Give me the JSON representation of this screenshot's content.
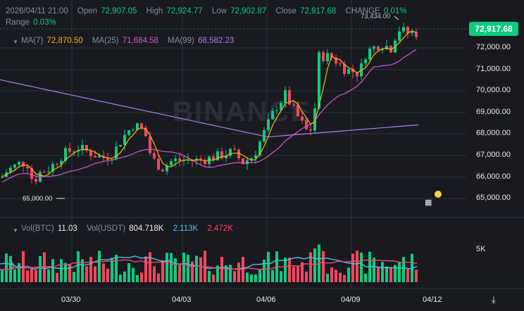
{
  "header": {
    "datetime": "2026/04/11 21:00",
    "open_label": "Open",
    "open": "72,907.05",
    "high_label": "High",
    "high": "72,924.77",
    "low_label": "Low",
    "low": "72,902.87",
    "close_label": "Close",
    "close": "72,917.68",
    "change_label": "CHANGE",
    "change": "0.01%",
    "range_label": "Range",
    "range": "0.03%"
  },
  "ma": {
    "ma7_label": "MA(7)",
    "ma7": "72,870.50",
    "ma25_label": "MA(25)",
    "ma25": "71,684.58",
    "ma99_label": "MA(99)",
    "ma99": "68,582.23"
  },
  "volume": {
    "btc_label": "Vol(BTC)",
    "btc": "11.03",
    "usdt_label": "Vol(USDT)",
    "usdt": "804.718K",
    "v1": "2.113K",
    "v2": "2.472K"
  },
  "price_tag": "72,917.68",
  "high_annotation": "73,434.00",
  "low_annotation": "65,000.00",
  "watermark": "BINANCE",
  "y_axis": [
    "72,000.00",
    "71,000.00",
    "70,000.00",
    "69,000.00",
    "68,000.00",
    "67,000.00",
    "66,000.00",
    "65,000.00"
  ],
  "vol_axis": "5K",
  "x_axis": [
    "03/30",
    "04/03",
    "04/06",
    "04/09",
    "04/12"
  ],
  "colors": {
    "up": "#0ecb81",
    "down": "#f6465d",
    "ma7": "#f0b90b",
    "ma25": "#d65ac9",
    "ma99": "#b07ee8",
    "bg": "#181a20",
    "grid": "#2b3139"
  },
  "icons": [
    "chevron-icon",
    "indicator-settings-icon",
    "alert-dot-icon",
    "collapse-icon",
    "scroll-right-icon"
  ],
  "chart_data": {
    "type": "candlestick",
    "y_range": [
      64500,
      73800
    ],
    "x_labels": [
      "03/30",
      "04/03",
      "04/06",
      "04/09",
      "04/12"
    ],
    "ma_series": [
      {
        "name": "MA(7)",
        "last": 72870.5
      },
      {
        "name": "MA(25)",
        "last": 71684.58
      },
      {
        "name": "MA(99)",
        "last": 68582.23
      }
    ],
    "latest_close": 72917.68,
    "period_high": 73434.0,
    "period_low": 65000.0
  }
}
